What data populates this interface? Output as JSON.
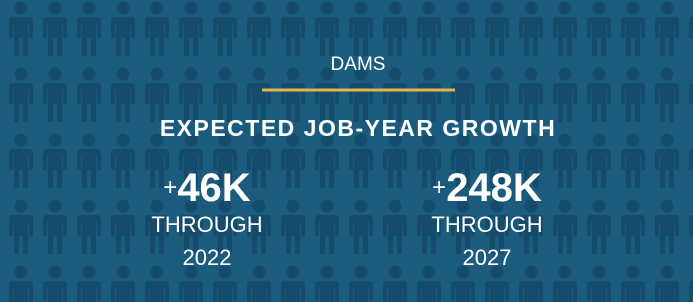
{
  "header": {
    "category": "DAMS",
    "title": "EXPECTED JOB-YEAR GROWTH"
  },
  "stats": [
    {
      "sign": "+",
      "value": "46K",
      "label": "THROUGH",
      "year": "2022"
    },
    {
      "sign": "+",
      "value": "248K",
      "label": "THROUGH",
      "year": "2027"
    }
  ]
}
